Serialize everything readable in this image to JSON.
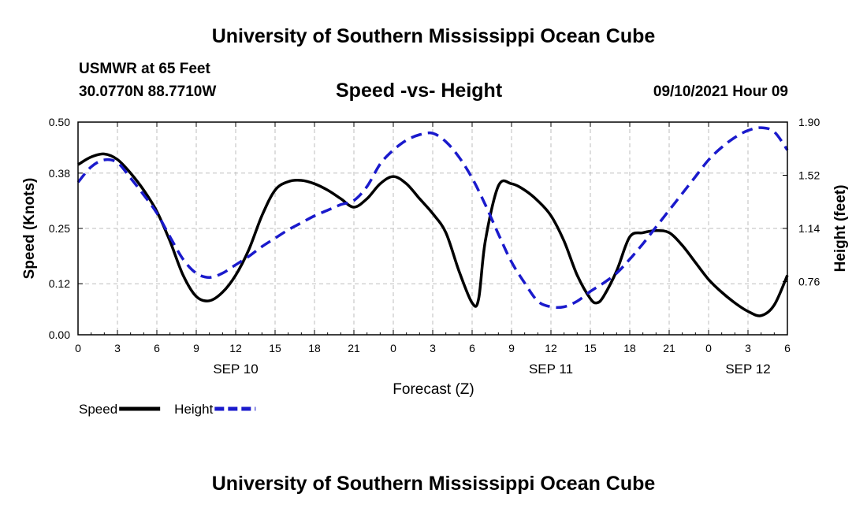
{
  "header": {
    "title": "University of Southern Mississippi Ocean Cube",
    "station": "USMWR at 65 Feet",
    "coords": "30.0770N  88.7710W",
    "subtitle": "Speed -vs- Height",
    "datetime": "09/10/2021 Hour 09"
  },
  "footer": {
    "title": "University of Southern Mississippi Ocean Cube"
  },
  "chart_data": {
    "type": "line",
    "xlabel": "Forecast (Z)",
    "ylabel": "Speed (Knots)",
    "y2label": "Height (feet)",
    "xlim": [
      0,
      54
    ],
    "ylim": [
      0,
      0.5
    ],
    "y2lim": [
      0.38,
      1.9
    ],
    "grid": true,
    "x_tick_values": [
      0,
      3,
      6,
      9,
      12,
      15,
      18,
      21,
      24,
      27,
      30,
      33,
      36,
      39,
      42,
      45,
      48,
      51,
      54
    ],
    "x_tick_labels": [
      "0",
      "3",
      "6",
      "9",
      "12",
      "15",
      "18",
      "21",
      "0",
      "3",
      "6",
      "9",
      "12",
      "15",
      "18",
      "21",
      "0",
      "3",
      "6"
    ],
    "y_ticks": [
      0.0,
      0.12,
      0.25,
      0.38,
      0.5
    ],
    "y_tick_labels": [
      "0.00",
      "0.12",
      "0.25",
      "0.38",
      "0.50"
    ],
    "y2_ticks": [
      0.76,
      1.14,
      1.52,
      1.9
    ],
    "y2_tick_labels": [
      "0.76",
      "1.14",
      "1.52",
      "1.90"
    ],
    "date_labels": [
      {
        "x": 12,
        "label": "SEP 10"
      },
      {
        "x": 36,
        "label": "SEP 11"
      },
      {
        "x": 51,
        "label": "SEP 12"
      }
    ],
    "legend": [
      {
        "name": "Speed",
        "color": "#000000",
        "dash": "solid"
      },
      {
        "name": "Height",
        "color": "#1a1acc",
        "dash": "dashed"
      }
    ],
    "series": [
      {
        "name": "Speed",
        "axis": "left",
        "color": "#000000",
        "x": [
          0,
          1,
          2,
          3,
          4,
          5,
          6,
          7,
          8,
          9,
          10,
          11,
          12,
          13,
          14,
          15,
          16,
          17,
          18,
          19,
          20,
          21,
          22,
          23,
          24,
          25,
          26,
          27,
          28,
          29,
          30,
          30.5,
          31,
          32,
          33,
          34,
          35,
          36,
          37,
          38,
          39,
          39.5,
          40,
          41,
          42,
          43,
          44,
          45,
          46,
          47,
          48,
          49,
          50,
          51,
          52,
          53,
          54
        ],
        "values": [
          0.4,
          0.418,
          0.425,
          0.412,
          0.38,
          0.34,
          0.29,
          0.22,
          0.14,
          0.09,
          0.08,
          0.1,
          0.14,
          0.2,
          0.28,
          0.34,
          0.36,
          0.363,
          0.355,
          0.34,
          0.32,
          0.3,
          0.32,
          0.355,
          0.372,
          0.355,
          0.32,
          0.285,
          0.24,
          0.15,
          0.075,
          0.085,
          0.22,
          0.35,
          0.355,
          0.34,
          0.315,
          0.28,
          0.22,
          0.14,
          0.085,
          0.075,
          0.09,
          0.15,
          0.23,
          0.24,
          0.245,
          0.24,
          0.21,
          0.17,
          0.13,
          0.1,
          0.075,
          0.055,
          0.045,
          0.07,
          0.14
        ]
      },
      {
        "name": "Height",
        "axis": "right",
        "color": "#1a1acc",
        "x": [
          0,
          1,
          2,
          3,
          4,
          5,
          6,
          7,
          8,
          9,
          10,
          11,
          12,
          13,
          14,
          15,
          16,
          17,
          18,
          19,
          20,
          21,
          22,
          23,
          24,
          25,
          26,
          27,
          28,
          29,
          30,
          31,
          32,
          33,
          34,
          35,
          36,
          37,
          38,
          39,
          40,
          41,
          42,
          43,
          44,
          45,
          46,
          47,
          48,
          49,
          50,
          51,
          52,
          53,
          54
        ],
        "values": [
          1.47,
          1.58,
          1.63,
          1.61,
          1.5,
          1.38,
          1.25,
          1.08,
          0.92,
          0.82,
          0.79,
          0.82,
          0.88,
          0.94,
          1.01,
          1.07,
          1.13,
          1.18,
          1.23,
          1.27,
          1.31,
          1.34,
          1.44,
          1.6,
          1.7,
          1.77,
          1.81,
          1.82,
          1.76,
          1.65,
          1.5,
          1.31,
          1.1,
          0.9,
          0.75,
          0.62,
          0.58,
          0.58,
          0.62,
          0.69,
          0.75,
          0.82,
          0.92,
          1.03,
          1.15,
          1.27,
          1.39,
          1.51,
          1.63,
          1.72,
          1.79,
          1.84,
          1.86,
          1.83,
          1.7
        ]
      }
    ]
  }
}
